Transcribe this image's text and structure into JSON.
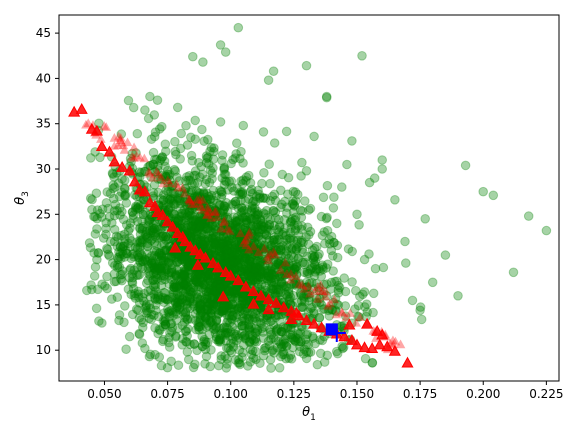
{
  "chart_data": {
    "type": "scatter",
    "title": "",
    "xlabel": "θ",
    "xlabel_sub": "1",
    "ylabel": "θ",
    "ylabel_sub": "3",
    "xlim": [
      0.032,
      0.23
    ],
    "ylim": [
      6.6,
      47.0
    ],
    "xticks": [
      0.05,
      0.075,
      0.1,
      0.125,
      0.15,
      0.175,
      0.2,
      0.225
    ],
    "xtick_labels": [
      "0.050",
      "0.075",
      "0.100",
      "0.125",
      "0.150",
      "0.175",
      "0.200",
      "0.225"
    ],
    "yticks": [
      10,
      15,
      20,
      25,
      30,
      35,
      40,
      45
    ],
    "ytick_labels": [
      "10",
      "15",
      "20",
      "25",
      "30",
      "35",
      "40",
      "45"
    ],
    "grid": false,
    "colors": {
      "green": "#008000",
      "red": "#ff0000",
      "blue": "#0000ff"
    },
    "series": [
      {
        "marker": "circle",
        "color": "#008000",
        "alpha": 0.35,
        "approx_point_count": 3000,
        "center": [
          0.095,
          19.5
        ],
        "x": [
          0.103,
          0.096,
          0.098,
          0.085,
          0.089,
          0.068,
          0.152,
          0.13,
          0.117,
          0.115,
          0.138,
          0.071,
          0.079,
          0.066,
          0.096,
          0.105,
          0.113,
          0.133,
          0.148,
          0.16,
          0.177,
          0.193,
          0.2,
          0.204,
          0.218,
          0.225,
          0.212,
          0.19,
          0.185,
          0.18,
          0.172,
          0.175,
          0.169,
          0.165,
          0.16,
          0.157,
          0.155,
          0.15,
          0.146,
          0.144,
          0.063,
          0.061,
          0.057,
          0.055,
          0.058,
          0.052,
          0.047,
          0.045,
          0.043,
          0.049,
          0.056,
          0.065,
          0.066,
          0.06,
          0.072,
          0.074,
          0.078,
          0.08,
          0.083,
          0.09,
          0.094,
          0.097,
          0.1,
          0.101,
          0.104,
          0.108,
          0.11,
          0.112,
          0.118,
          0.12,
          0.122,
          0.125,
          0.128,
          0.131,
          0.135,
          0.139,
          0.142,
          0.153,
          0.142,
          0.138,
          0.136,
          0.142,
          0.137,
          0.125,
          0.12,
          0.13,
          0.11,
          0.09,
          0.07,
          0.106,
          0.098,
          0.074,
          0.08,
          0.13
        ],
        "y": [
          45.6,
          43.7,
          42.9,
          42.4,
          41.8,
          38.0,
          42.5,
          41.4,
          40.8,
          39.8,
          38.0,
          37.6,
          36.8,
          36.5,
          35.2,
          34.8,
          34.1,
          33.6,
          33.1,
          31.0,
          24.5,
          30.4,
          27.5,
          27.1,
          24.8,
          23.2,
          18.6,
          16.0,
          20.5,
          17.5,
          15.5,
          14.4,
          22.0,
          26.6,
          30.0,
          29.0,
          28.5,
          25.0,
          30.5,
          28.0,
          33.9,
          31.7,
          28.9,
          25.4,
          22.8,
          20.4,
          20.0,
          16.7,
          16.6,
          13.0,
          13.9,
          10.8,
          10.2,
          11.5,
          12.2,
          13.5,
          15.2,
          14.5,
          17.0,
          19.0,
          20.5,
          22.0,
          23.5,
          26.0,
          27.2,
          24.5,
          21.0,
          18.5,
          16.0,
          12.0,
          10.5,
          11.2,
          13.6,
          15.8,
          19.0,
          22.2,
          24.0,
          20.0,
          17.6,
          16.0,
          15.0,
          12.8,
          11.5,
          13.0,
          10.3,
          9.8,
          9.0,
          10.1,
          9.5,
          28.7,
          29.4,
          30.3,
          31.1,
          29.8
        ]
      },
      {
        "marker": "triangle",
        "color": "#ff0000",
        "x": [
          0.038,
          0.041,
          0.045,
          0.047,
          0.049,
          0.052,
          0.054,
          0.057,
          0.06,
          0.062,
          0.064,
          0.066,
          0.068,
          0.07,
          0.071,
          0.073,
          0.075,
          0.077,
          0.079,
          0.081,
          0.082,
          0.084,
          0.086,
          0.088,
          0.09,
          0.093,
          0.095,
          0.098,
          0.1,
          0.103,
          0.106,
          0.109,
          0.112,
          0.115,
          0.118,
          0.121,
          0.124,
          0.127,
          0.13,
          0.133,
          0.136,
          0.139,
          0.142,
          0.145,
          0.148,
          0.15,
          0.153,
          0.156,
          0.159,
          0.162,
          0.165,
          0.17,
          0.154,
          0.158,
          0.16,
          0.147,
          0.124,
          0.126,
          0.115,
          0.109,
          0.097,
          0.087,
          0.078
        ],
        "y": [
          36.3,
          36.6,
          34.4,
          34.2,
          32.5,
          31.9,
          30.8,
          30.2,
          29.8,
          28.6,
          27.7,
          27.5,
          26.3,
          25.9,
          25.2,
          24.9,
          24.2,
          23.6,
          22.9,
          22.5,
          22.0,
          21.4,
          21.0,
          20.6,
          20.2,
          19.6,
          19.1,
          18.6,
          18.2,
          17.7,
          17.0,
          16.5,
          16.0,
          15.6,
          15.2,
          14.7,
          14.3,
          13.8,
          13.3,
          12.9,
          12.5,
          12.1,
          11.8,
          11.5,
          11.1,
          10.6,
          10.3,
          10.2,
          10.6,
          10.4,
          9.9,
          8.6,
          12.9,
          12.1,
          11.7,
          12.8,
          13.4,
          14.1,
          14.5,
          15.1,
          15.9,
          19.4,
          21.3
        ]
      },
      {
        "marker": "square",
        "color": "#0000ff",
        "x": [
          0.14
        ],
        "y": [
          12.3
        ]
      },
      {
        "marker": "plus",
        "color": "#0000ff",
        "x": [
          0.142
        ],
        "y": [
          11.9
        ]
      }
    ]
  }
}
